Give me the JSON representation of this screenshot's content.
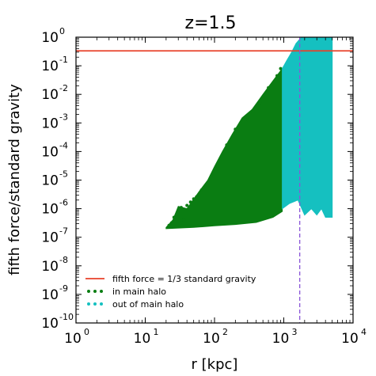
{
  "chart_data": {
    "type": "scatter",
    "title": "z=1.5",
    "xlabel": "r [kpc]",
    "ylabel": "fifth force/standard gravity",
    "x_scale": "log",
    "y_scale": "log",
    "xlim": [
      1,
      10000
    ],
    "ylim": [
      1e-10,
      1
    ],
    "x_ticks": [
      {
        "value": 1,
        "base": "10",
        "exp": "0"
      },
      {
        "value": 10,
        "base": "10",
        "exp": "1"
      },
      {
        "value": 100,
        "base": "10",
        "exp": "2"
      },
      {
        "value": 1000,
        "base": "10",
        "exp": "3"
      },
      {
        "value": 10000,
        "base": "10",
        "exp": "4"
      }
    ],
    "y_ticks": [
      {
        "value": 1,
        "base": "10",
        "exp": "0"
      },
      {
        "value": 0.1,
        "base": "10",
        "exp": "-1"
      },
      {
        "value": 0.01,
        "base": "10",
        "exp": "-2"
      },
      {
        "value": 0.001,
        "base": "10",
        "exp": "-3"
      },
      {
        "value": 0.0001,
        "base": "10",
        "exp": "-4"
      },
      {
        "value": 1e-05,
        "base": "10",
        "exp": "-5"
      },
      {
        "value": 1e-06,
        "base": "10",
        "exp": "-6"
      },
      {
        "value": 1e-07,
        "base": "10",
        "exp": "-7"
      },
      {
        "value": 1e-08,
        "base": "10",
        "exp": "-8"
      },
      {
        "value": 1e-09,
        "base": "10",
        "exp": "-9"
      },
      {
        "value": 1e-10,
        "base": "10",
        "exp": "-10"
      }
    ],
    "hline": {
      "name": "fifth force = 1/3 standard gravity",
      "y": 0.3333,
      "color": "#e8412a"
    },
    "vline": {
      "x": 1700,
      "color": "#8a55d8",
      "style": "dashed"
    },
    "series": [
      {
        "name": "in main halo",
        "color": "#0a7d12",
        "upper": [
          [
            20,
            2.2e-07
          ],
          [
            25,
            4e-07
          ],
          [
            30,
            1.2e-06
          ],
          [
            40,
            1e-06
          ],
          [
            60,
            4e-06
          ],
          [
            80,
            1e-05
          ],
          [
            100,
            3e-05
          ],
          [
            130,
            0.0001
          ],
          [
            180,
            0.0004
          ],
          [
            250,
            0.0015
          ],
          [
            350,
            0.003
          ],
          [
            500,
            0.01
          ],
          [
            700,
            0.03
          ],
          [
            950,
            0.08
          ]
        ],
        "lower": [
          [
            20,
            2e-07
          ],
          [
            50,
            2.2e-07
          ],
          [
            100,
            2.5e-07
          ],
          [
            200,
            2.8e-07
          ],
          [
            400,
            3.3e-07
          ],
          [
            700,
            5e-07
          ],
          [
            950,
            8e-07
          ]
        ],
        "scatter": [
          [
            22,
            2.6e-07
          ],
          [
            24,
            3.2e-07
          ],
          [
            26,
            5e-07
          ],
          [
            28,
            6e-07
          ],
          [
            30,
            8e-07
          ],
          [
            33,
            1.1e-06
          ],
          [
            36,
            4e-07
          ],
          [
            40,
            1.3e-06
          ],
          [
            45,
            1.7e-06
          ],
          [
            50,
            2.2e-06
          ],
          [
            55,
            2.6e-06
          ],
          [
            65,
            4.5e-06
          ],
          [
            75,
            6e-06
          ],
          [
            90,
            1.4e-05
          ],
          [
            110,
            2.5e-05
          ],
          [
            150,
            0.00017
          ],
          [
            200,
            0.0006
          ],
          [
            300,
            0.0013
          ],
          [
            450,
            0.005
          ],
          [
            600,
            0.017
          ],
          [
            800,
            0.045
          ],
          [
            900,
            0.08
          ]
        ]
      },
      {
        "name": "out of main halo",
        "color": "#15c0c0",
        "upper": [
          [
            950,
            0.08
          ],
          [
            1100,
            0.15
          ],
          [
            1300,
            0.3
          ],
          [
            1500,
            0.6
          ],
          [
            1800,
            1
          ],
          [
            5000,
            1
          ]
        ],
        "lower": [
          [
            950,
            1e-06
          ],
          [
            1200,
            1.5e-06
          ],
          [
            1600,
            2e-06
          ],
          [
            2000,
            6e-07
          ],
          [
            2500,
            1e-06
          ],
          [
            3000,
            6e-07
          ],
          [
            3500,
            1e-06
          ],
          [
            4000,
            5e-07
          ],
          [
            5000,
            5e-07
          ]
        ]
      }
    ],
    "legend_position": "lower-left",
    "legend": [
      {
        "label": "fifth force = 1/3 standard gravity",
        "kind": "line",
        "color": "#e8412a"
      },
      {
        "label": "in main halo",
        "kind": "dots",
        "color": "#0a7d12"
      },
      {
        "label": "out of main halo",
        "kind": "dots",
        "color": "#15c0c0"
      }
    ]
  }
}
